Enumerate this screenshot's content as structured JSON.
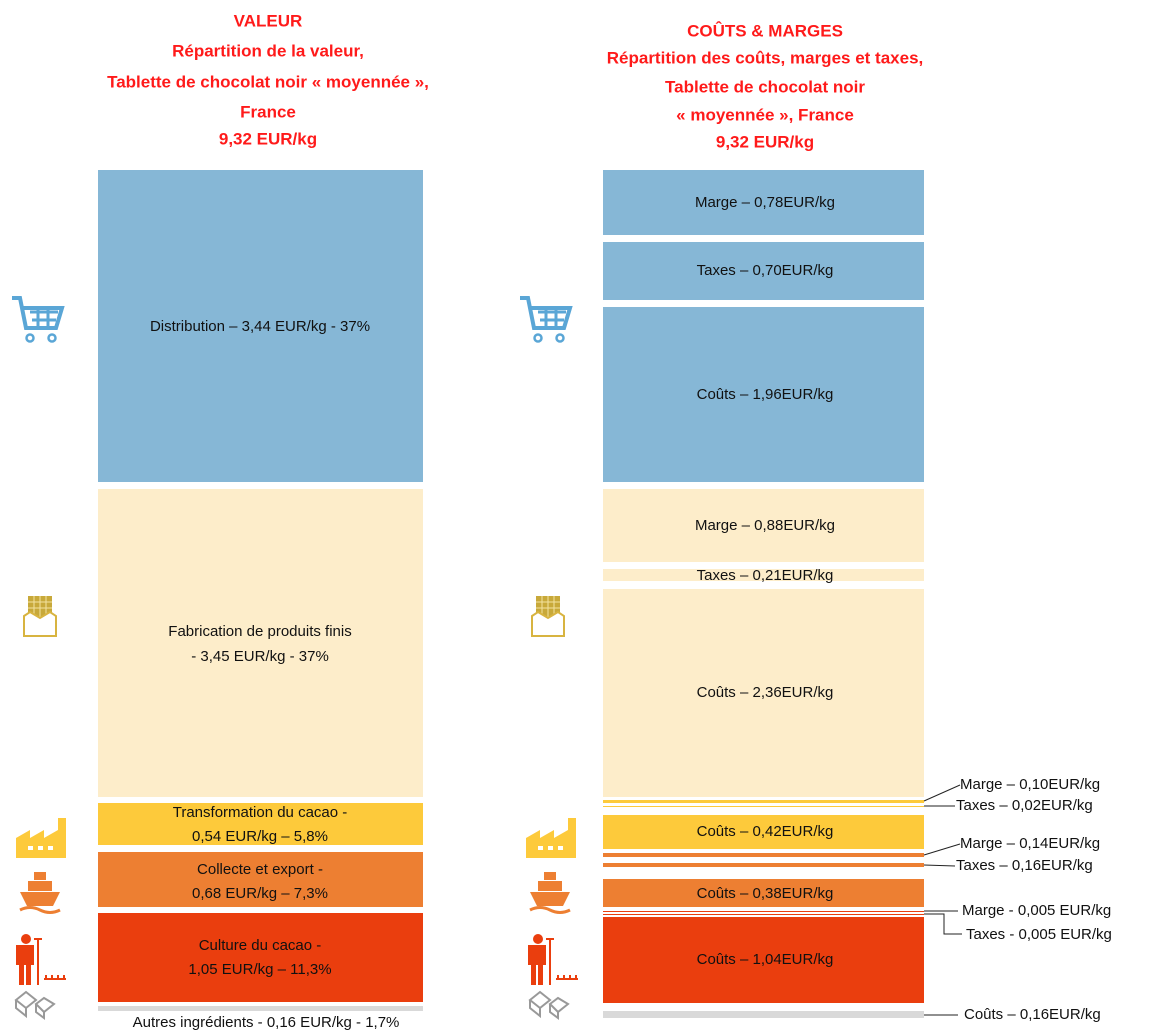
{
  "left": {
    "title": [
      "VALEUR",
      "Répartition de la valeur,",
      "Tablette de chocolat noir « moyennée »,",
      "France",
      "9,32 EUR/kg"
    ],
    "segments": [
      [
        "Distribution – 3,44 EUR/kg  - 37%"
      ],
      [
        "Fabrication de produits finis",
        "- 3,45 EUR/kg - 37%"
      ],
      [
        "Transformation du cacao -",
        "0,54 EUR/kg – 5,8%"
      ],
      [
        "Collecte et export -",
        "0,68 EUR/kg – 7,3%"
      ],
      [
        "Culture du cacao -",
        "1,05 EUR/kg – 11,3%"
      ],
      [
        "Autres ingrédients - 0,16 EUR/kg - 1,7%"
      ]
    ]
  },
  "right": {
    "title": [
      "COÛTS & MARGES",
      "Répartition des coûts, marges et taxes,",
      "Tablette de chocolat noir",
      "« moyennée », France",
      "9,32 EUR/kg"
    ],
    "inside": [
      "Marge – 0,78EUR/kg",
      "Taxes – 0,70EUR/kg",
      "Coûts – 1,96EUR/kg",
      "Marge – 0,88EUR/kg",
      "Taxes – 0,21EUR/kg",
      "Coûts – 2,36EUR/kg",
      "Coûts – 0,42EUR/kg",
      "Coûts – 0,38EUR/kg",
      "Coûts – 1,04EUR/kg"
    ],
    "outside": [
      "Marge – 0,10EUR/kg",
      "Taxes – 0,02EUR/kg",
      "Marge – 0,14EUR/kg",
      "Taxes – 0,16EUR/kg",
      "Marge - 0,005 EUR/kg",
      "Taxes - 0,005 EUR/kg",
      "Coûts – 0,16EUR/kg"
    ]
  }
}
